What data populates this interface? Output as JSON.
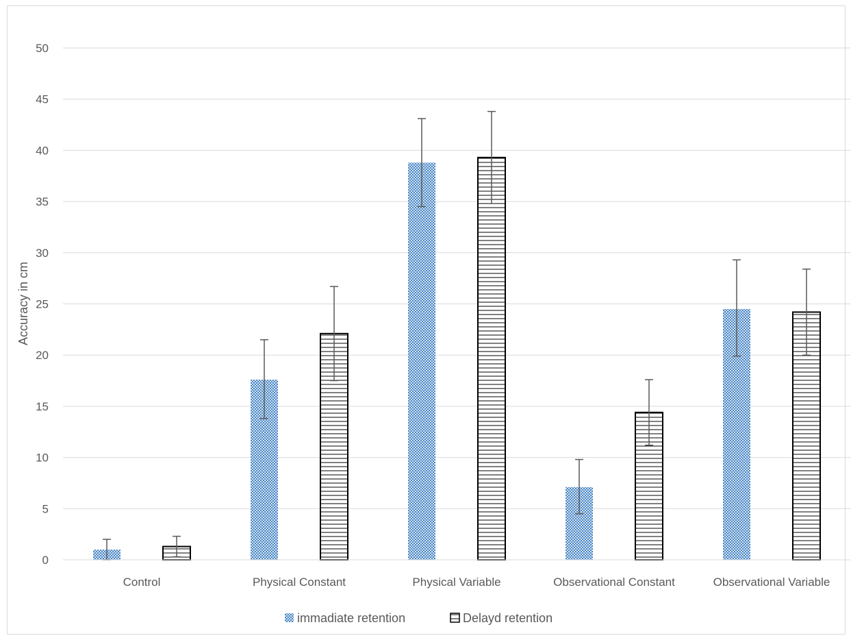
{
  "chart_data": {
    "type": "bar",
    "title": "",
    "xlabel": "",
    "ylabel": "Accuracy in cm",
    "ylim": [
      0,
      50
    ],
    "yticks": [
      0,
      5,
      10,
      15,
      20,
      25,
      30,
      35,
      40,
      45,
      50
    ],
    "grid": true,
    "legend_position": "bottom",
    "categories": [
      "Control",
      "Physical Constant",
      "Physical Variable",
      "Observational Constant",
      "Observational Variable"
    ],
    "series": [
      {
        "name": "immadiate retention",
        "pattern": "checkered",
        "color": "#4a86c5",
        "values": [
          1.0,
          17.6,
          38.8,
          7.1,
          24.5
        ],
        "error_low": [
          0.0,
          13.8,
          34.5,
          4.5,
          19.9
        ],
        "error_high": [
          2.0,
          21.5,
          43.1,
          9.8,
          29.3
        ]
      },
      {
        "name": "Delayd retention",
        "pattern": "horizontal-lines",
        "color": "#000000",
        "values": [
          1.3,
          22.1,
          39.3,
          14.4,
          24.2
        ],
        "error_low": [
          0.3,
          17.5,
          34.8,
          11.2,
          20.0
        ],
        "error_high": [
          2.3,
          26.7,
          43.8,
          17.6,
          28.4
        ]
      }
    ]
  }
}
